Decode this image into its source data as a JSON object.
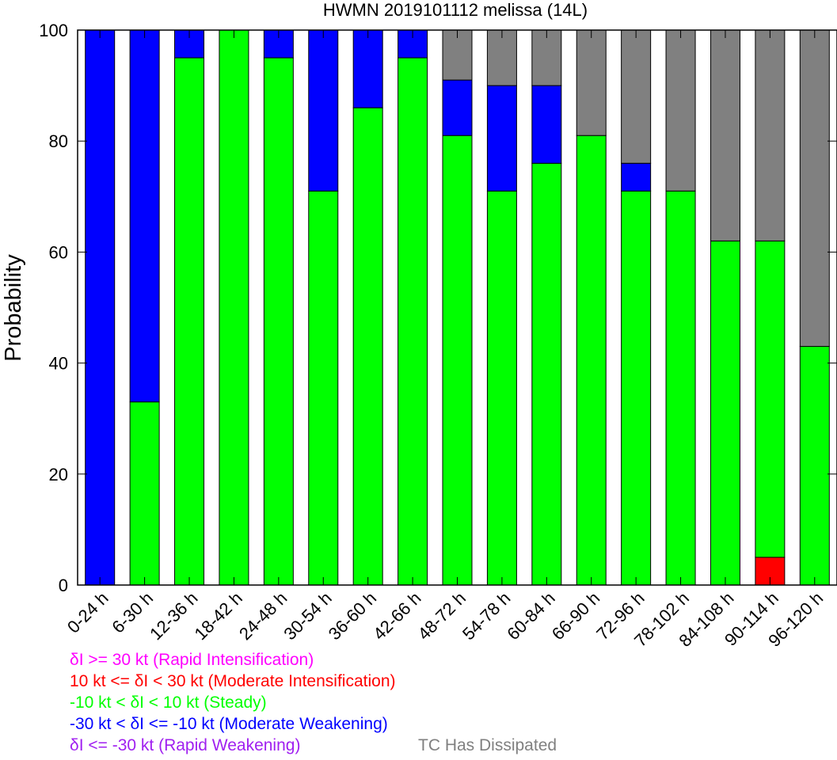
{
  "chart_data": {
    "type": "bar",
    "stacked": true,
    "title": "HWMN 2019101112 melissa (14L)",
    "xlabel": "",
    "ylabel": "Probability",
    "ylim": [
      0,
      100
    ],
    "yticks": [
      0,
      20,
      40,
      60,
      80,
      100
    ],
    "grid": false,
    "categories": [
      "0-24 h",
      "6-30 h",
      "12-36 h",
      "18-42 h",
      "24-48 h",
      "30-54 h",
      "36-60 h",
      "42-66 h",
      "48-72 h",
      "54-78 h",
      "60-84 h",
      "66-90 h",
      "72-96 h",
      "78-102 h",
      "84-108 h",
      "90-114 h",
      "96-120 h"
    ],
    "series": [
      {
        "key": "rapid_intensification",
        "color": "#ff00ff",
        "values": [
          0,
          0,
          0,
          0,
          0,
          0,
          0,
          0,
          0,
          0,
          0,
          0,
          0,
          0,
          0,
          0,
          0
        ]
      },
      {
        "key": "moderate_intensification",
        "color": "#ff0000",
        "values": [
          0,
          0,
          0,
          0,
          0,
          0,
          0,
          0,
          0,
          0,
          0,
          0,
          0,
          0,
          0,
          5,
          0
        ]
      },
      {
        "key": "steady",
        "color": "#00ff00",
        "values": [
          0,
          33,
          95,
          100,
          95,
          71,
          86,
          95,
          81,
          71,
          76,
          81,
          71,
          71,
          62,
          57,
          43
        ]
      },
      {
        "key": "moderate_weakening",
        "color": "#0000ff",
        "values": [
          100,
          67,
          5,
          0,
          5,
          29,
          14,
          5,
          10,
          19,
          14,
          0,
          5,
          0,
          0,
          0,
          0
        ]
      },
      {
        "key": "rapid_weakening",
        "color": "#a020f0",
        "values": [
          0,
          0,
          0,
          0,
          0,
          0,
          0,
          0,
          0,
          0,
          0,
          0,
          0,
          0,
          0,
          0,
          0
        ]
      },
      {
        "key": "dissipated",
        "color": "#808080",
        "values": [
          0,
          0,
          0,
          0,
          0,
          0,
          0,
          0,
          9,
          10,
          10,
          19,
          24,
          29,
          38,
          38,
          57
        ]
      }
    ],
    "stack_order": [
      "moderate_intensification",
      "steady",
      "moderate_weakening",
      "rapid_weakening",
      "dissipated"
    ],
    "legend": [
      {
        "text": "δI >= 30 kt (Rapid Intensification)",
        "color": "#ff00ff"
      },
      {
        "text": "10 kt <= δI < 30 kt (Moderate Intensification)",
        "color": "#ff0000"
      },
      {
        "text": "-10 kt < δI < 10 kt (Steady)",
        "color": "#00ff00"
      },
      {
        "text": "-30 kt < δI <= -10 kt (Moderate Weakening)",
        "color": "#0000ff"
      },
      {
        "text": "δI <= -30 kt (Rapid Weakening)",
        "color": "#a020f0"
      },
      {
        "text": "TC Has Dissipated",
        "color": "#808080"
      }
    ],
    "legend_placement": "bottom"
  }
}
